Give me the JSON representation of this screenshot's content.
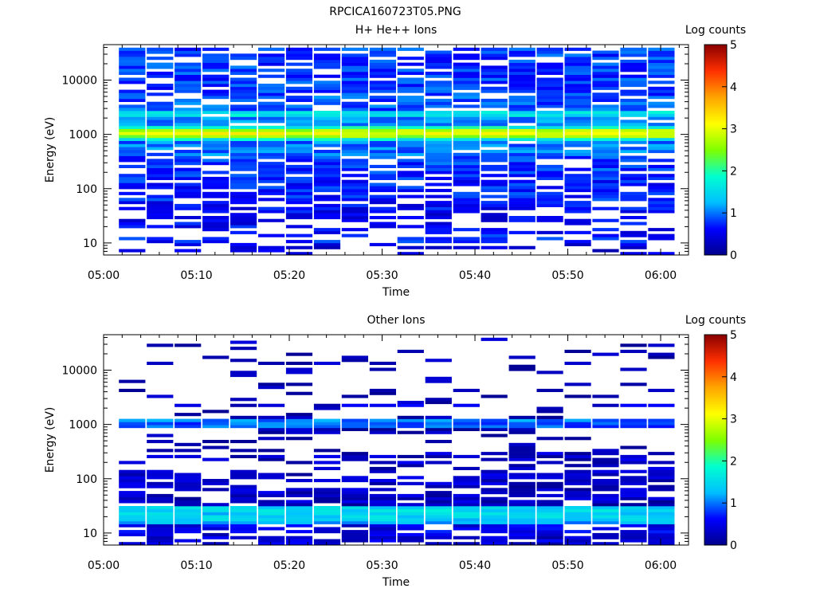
{
  "figure": {
    "title": "RPCICA160723T05.PNG"
  },
  "colors": {
    "axes": "#000000",
    "background": "#ffffff"
  },
  "colormap": [
    "#00008b",
    "#0000ff",
    "#00bfff",
    "#00ffd0",
    "#7fff00",
    "#ffff00",
    "#ffa500",
    "#ff3000",
    "#8b0000"
  ],
  "chart_data": [
    {
      "type": "heatmap",
      "title": "H+ He++ Ions",
      "xlabel": "Time",
      "ylabel": "Energy (eV)",
      "yscale": "log",
      "ylim": [
        6,
        45000
      ],
      "xlim": [
        "05:00",
        "06:03"
      ],
      "xticks": [
        "05:00",
        "05:10",
        "05:20",
        "05:30",
        "05:40",
        "05:50",
        "06:00"
      ],
      "yticks": [
        "10",
        "100",
        "1000",
        "10000"
      ],
      "colorbar": {
        "label": "Log counts",
        "ticks": [
          "0",
          "1",
          "2",
          "3",
          "4",
          "5"
        ],
        "range": [
          0,
          5
        ]
      },
      "time_bins": [
        "05:03",
        "05:06",
        "05:09",
        "05:12",
        "05:15",
        "05:18",
        "05:21",
        "05:24",
        "05:27",
        "05:30",
        "05:33",
        "05:36",
        "05:39",
        "05:42",
        "05:45",
        "05:48",
        "05:51",
        "05:54",
        "05:57",
        "06:00"
      ],
      "profile": [
        {
          "energy_range": [
            6,
            10
          ],
          "log_counts": 0.4,
          "fill": 0.35
        },
        {
          "energy_range": [
            10,
            15
          ],
          "log_counts": 0.7,
          "fill": 0.4
        },
        {
          "energy_range": [
            15,
            25
          ],
          "log_counts": 0.6,
          "fill": 0.5
        },
        {
          "energy_range": [
            25,
            35
          ],
          "log_counts": 0.5,
          "fill": 0.55
        },
        {
          "energy_range": [
            35,
            60
          ],
          "log_counts": 0.6,
          "fill": 0.7
        },
        {
          "energy_range": [
            60,
            150
          ],
          "log_counts": 0.7,
          "fill": 0.75
        },
        {
          "energy_range": [
            150,
            400
          ],
          "log_counts": 0.8,
          "fill": 0.78
        },
        {
          "energy_range": [
            400,
            800
          ],
          "log_counts": 1.0,
          "fill": 0.85
        },
        {
          "energy_range": [
            800,
            900
          ],
          "log_counts": 1.7,
          "fill": 1.0
        },
        {
          "energy_range": [
            900,
            1000
          ],
          "log_counts": 2.6,
          "fill": 1.0
        },
        {
          "energy_range": [
            1000,
            1130
          ],
          "log_counts": 3.1,
          "fill": 1.0
        },
        {
          "energy_range": [
            1130,
            1280
          ],
          "log_counts": 2.7,
          "fill": 1.0
        },
        {
          "energy_range": [
            1280,
            1500
          ],
          "log_counts": 1.8,
          "fill": 1.0
        },
        {
          "energy_range": [
            1500,
            2000
          ],
          "log_counts": 1.1,
          "fill": 0.9
        },
        {
          "energy_range": [
            2000,
            2600
          ],
          "log_counts": 1.6,
          "fill": 0.95
        },
        {
          "energy_range": [
            2600,
            5000
          ],
          "log_counts": 0.9,
          "fill": 0.8
        },
        {
          "energy_range": [
            5000,
            40000
          ],
          "log_counts": 0.8,
          "fill": 0.78
        }
      ]
    },
    {
      "type": "heatmap",
      "title": "Other Ions",
      "xlabel": "Time",
      "ylabel": "Energy (eV)",
      "yscale": "log",
      "ylim": [
        6,
        45000
      ],
      "xlim": [
        "05:00",
        "06:03"
      ],
      "xticks": [
        "05:00",
        "05:10",
        "05:20",
        "05:30",
        "05:40",
        "05:50",
        "06:00"
      ],
      "yticks": [
        "10",
        "100",
        "1000",
        "10000"
      ],
      "colorbar": {
        "label": "Log counts",
        "ticks": [
          "0",
          "1",
          "2",
          "3",
          "4",
          "5"
        ],
        "range": [
          0,
          5
        ]
      },
      "time_bins": [
        "05:03",
        "05:06",
        "05:09",
        "05:12",
        "05:15",
        "05:18",
        "05:21",
        "05:24",
        "05:27",
        "05:30",
        "05:33",
        "05:36",
        "05:39",
        "05:42",
        "05:45",
        "05:48",
        "05:51",
        "05:54",
        "05:57",
        "06:00"
      ],
      "profile": [
        {
          "energy_range": [
            6,
            10
          ],
          "log_counts": 0.4,
          "fill": 0.6
        },
        {
          "energy_range": [
            10,
            14
          ],
          "log_counts": 0.5,
          "fill": 0.75
        },
        {
          "energy_range": [
            14,
            17
          ],
          "log_counts": 1.2,
          "fill": 1.0
        },
        {
          "energy_range": [
            17,
            23
          ],
          "log_counts": 1.4,
          "fill": 1.0
        },
        {
          "energy_range": [
            23,
            27
          ],
          "log_counts": 1.5,
          "fill": 1.0
        },
        {
          "energy_range": [
            27,
            33
          ],
          "log_counts": 1.4,
          "fill": 1.0
        },
        {
          "energy_range": [
            33,
            60
          ],
          "log_counts": 0.3,
          "fill": 0.7
        },
        {
          "energy_range": [
            60,
            300
          ],
          "log_counts": 0.3,
          "fill": 0.5
        },
        {
          "energy_range": [
            300,
            900
          ],
          "log_counts": 0.2,
          "fill": 0.25
        },
        {
          "energy_range": [
            900,
            1050
          ],
          "log_counts": 0.9,
          "fill": 1.0
        },
        {
          "energy_range": [
            1050,
            1150
          ],
          "log_counts": 1.5,
          "fill": 1.0
        },
        {
          "energy_range": [
            1150,
            1300
          ],
          "log_counts": 1.0,
          "fill": 1.0
        },
        {
          "energy_range": [
            1300,
            2000
          ],
          "log_counts": 0.2,
          "fill": 0.2
        },
        {
          "energy_range": [
            2000,
            2500
          ],
          "log_counts": 0.4,
          "fill": 0.55
        },
        {
          "energy_range": [
            2500,
            40000
          ],
          "log_counts": 0.2,
          "fill": 0.13
        }
      ]
    }
  ]
}
